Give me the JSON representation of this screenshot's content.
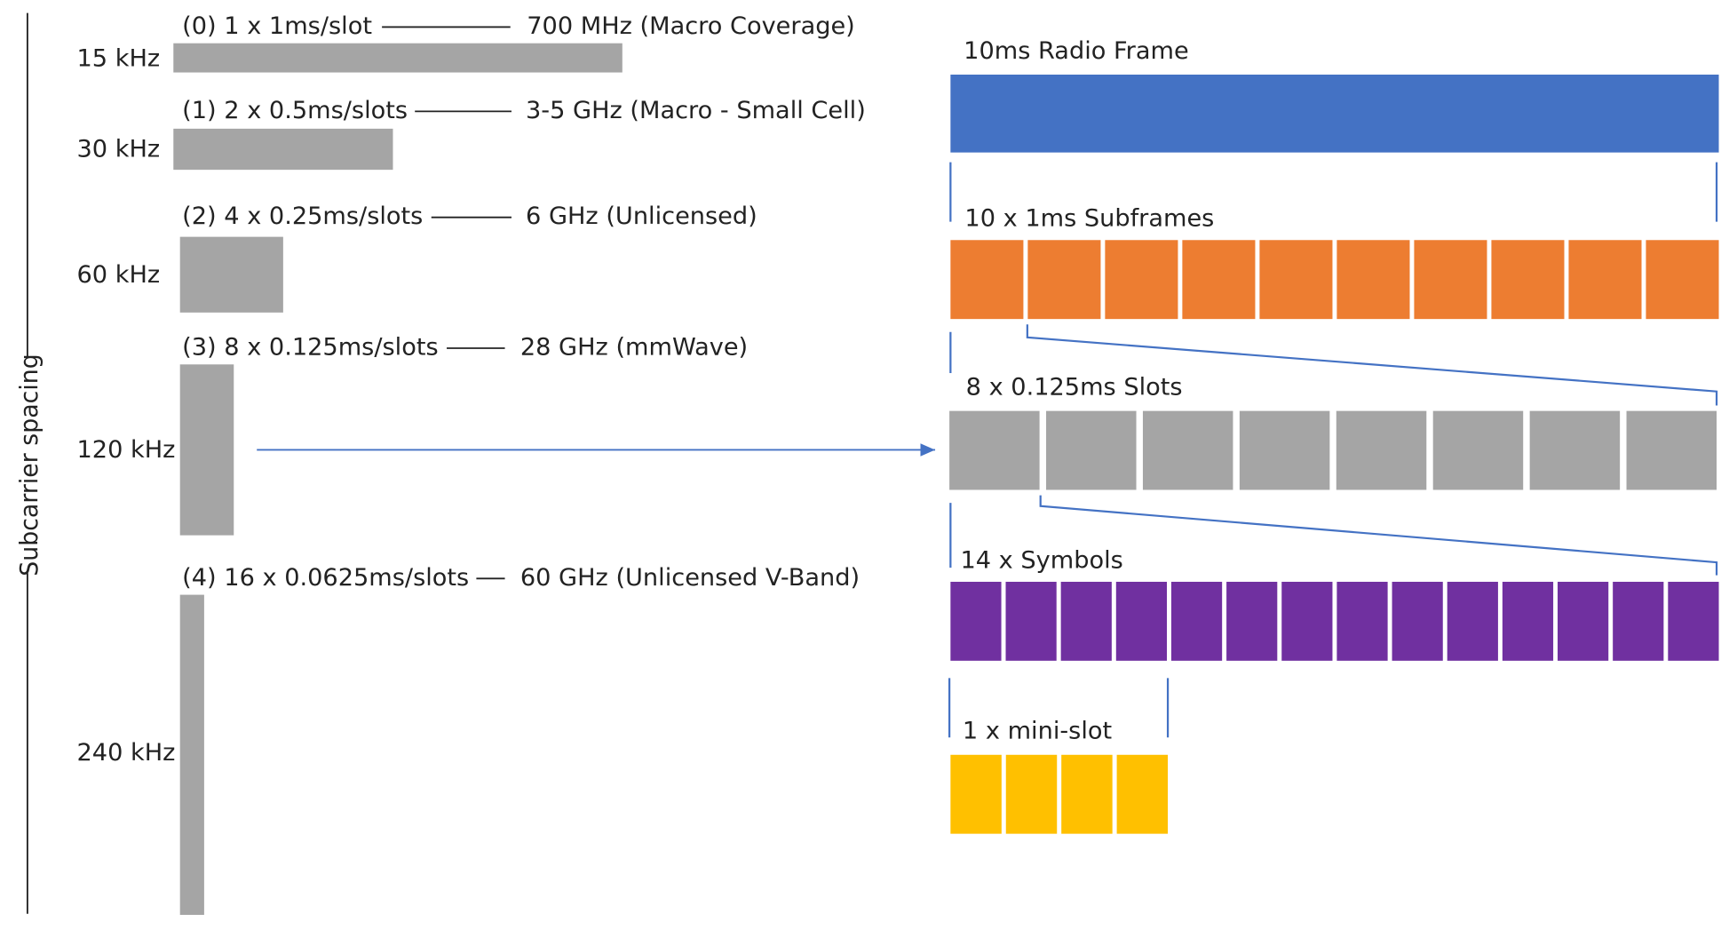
{
  "axis_label": "Subcarrier spacing",
  "numerologies": [
    {
      "label": "(0) 1 x 1ms/slot",
      "band": "700 MHz (Macro Coverage)",
      "scs": "15 kHz"
    },
    {
      "label": "(1) 2 x 0.5ms/slots",
      "band": "3-5 GHz (Macro - Small Cell)",
      "scs": "30 kHz"
    },
    {
      "label": "(2) 4 x 0.25ms/slots",
      "band": "6 GHz (Unlicensed)",
      "scs": "60 kHz"
    },
    {
      "label": "(3) 8 x 0.125ms/slots",
      "band": "28 GHz (mmWave)",
      "scs": "120 kHz"
    },
    {
      "label": "(4) 16 x 0.0625ms/slots",
      "band": "60 GHz (Unlicensed V-Band)",
      "scs": "240 kHz"
    }
  ],
  "frame": [
    "10ms Radio Frame",
    "10 x 1ms Subframes",
    "8  x 0.125ms Slots",
    "14 x Symbols",
    "1 x mini-slot"
  ]
}
